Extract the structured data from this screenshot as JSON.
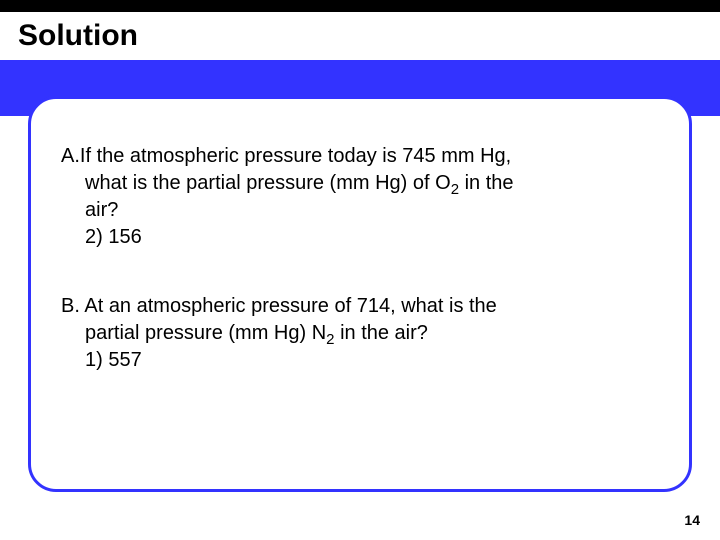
{
  "colors": {
    "accent_blue": "#3333ff",
    "header_black": "#000000",
    "background": "#ffffff",
    "text": "#000000"
  },
  "typography": {
    "title_fontsize": 30,
    "body_fontsize": 20,
    "pagenum_fontsize": 14,
    "family": "Arial"
  },
  "title": "Solution",
  "question_a": {
    "label": "A.",
    "line1": "If the atmospheric pressure today is 745 mm Hg,",
    "line2_pre": "what is the partial pressure (mm Hg) of O",
    "line2_sub": "2",
    "line2_post": " in the",
    "line3": "air?",
    "answer": "2)  156"
  },
  "question_b": {
    "label": "B.",
    "line1": " At an atmospheric pressure of 714, what is the",
    "line2_pre": "partial pressure (mm Hg) N",
    "line2_sub": "2",
    "line2_post": " in the air?",
    "answer": "1) 557"
  },
  "page_number": "14"
}
